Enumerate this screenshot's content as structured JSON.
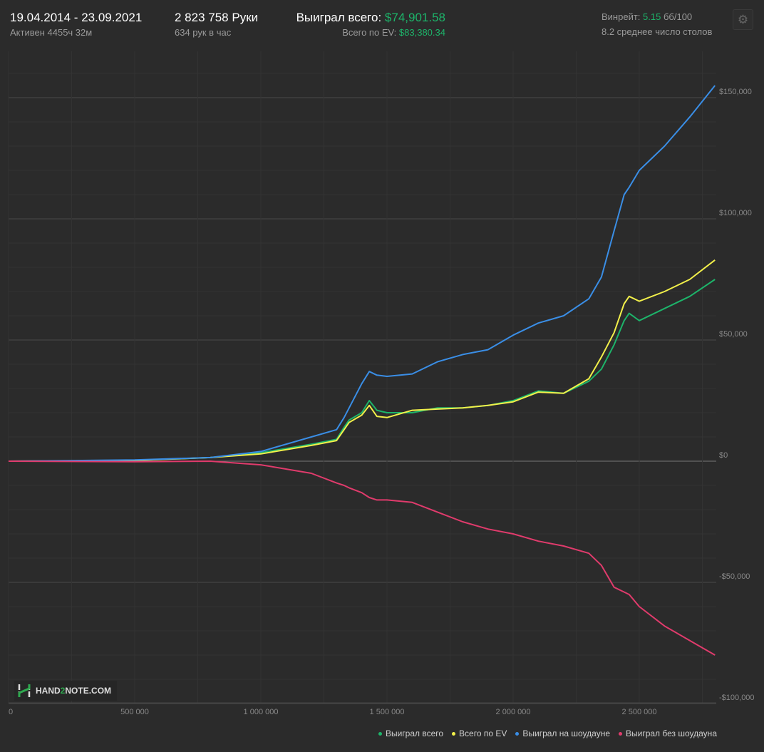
{
  "header": {
    "date_range": "19.04.2014 - 23.09.2021",
    "active": "Активен 4455ч 32м",
    "hands": "2 823 758 Руки",
    "hands_per_hour": "634 рук в час",
    "won_label": "Выиграл всего:",
    "won_value": "$74,901.58",
    "ev_label": "Всего по EV:",
    "ev_value": "$83,380.34",
    "winrate_label": "Винрейт:",
    "winrate_value": "5.15",
    "winrate_unit": "бб/100",
    "tables": "8.2 среднее число столов",
    "settings_icon": "gear-icon"
  },
  "logo": {
    "text_a": "HAND",
    "text_b": "2",
    "text_c": "NOTE.COM"
  },
  "chart_data": {
    "type": "line",
    "xlim": [
      0,
      2823758
    ],
    "ylim": [
      -100000,
      160000
    ],
    "grid": true,
    "legend_placement": "bottom-right",
    "x_ticks": [
      {
        "v": 0,
        "label": "0"
      },
      {
        "v": 500000,
        "label": "500 000"
      },
      {
        "v": 1000000,
        "label": "1 000 000"
      },
      {
        "v": 1500000,
        "label": "1 500 000"
      },
      {
        "v": 2000000,
        "label": "2 000 000"
      },
      {
        "v": 2500000,
        "label": "2 500 000"
      }
    ],
    "y_ticks": [
      {
        "v": 150000,
        "label": "$150,000"
      },
      {
        "v": 100000,
        "label": "$100,000"
      },
      {
        "v": 50000,
        "label": "$50,000"
      },
      {
        "v": 0,
        "label": "$0"
      },
      {
        "v": -50000,
        "label": "-$50,000"
      },
      {
        "v": -100000,
        "label": "-$100,000"
      }
    ],
    "x": [
      0,
      500000,
      800000,
      1000000,
      1200000,
      1300000,
      1330000,
      1350000,
      1400000,
      1430000,
      1460000,
      1500000,
      1600000,
      1700000,
      1800000,
      1900000,
      2000000,
      2100000,
      2200000,
      2300000,
      2350000,
      2400000,
      2440000,
      2460000,
      2500000,
      2600000,
      2700000,
      2800000
    ],
    "series": [
      {
        "name": "Выиграл всего",
        "color": "#1db46a",
        "values": [
          0,
          300,
          1500,
          3500,
          7000,
          9000,
          14000,
          17000,
          20000,
          25000,
          21000,
          20000,
          20000,
          22000,
          22000,
          23000,
          25000,
          29000,
          28000,
          33000,
          38000,
          48000,
          58000,
          61000,
          58000,
          63000,
          68000,
          75000
        ]
      },
      {
        "name": "Всего по EV",
        "color": "#f2f04a",
        "values": [
          0,
          300,
          1500,
          3000,
          6500,
          8500,
          13000,
          16000,
          19000,
          23000,
          18500,
          18000,
          21000,
          21500,
          22000,
          23000,
          24500,
          28500,
          28000,
          34000,
          43000,
          53000,
          65000,
          68000,
          66000,
          70000,
          75000,
          83000
        ]
      },
      {
        "name": "Выиграл на шоудауне",
        "color": "#3a8ee6",
        "values": [
          0,
          500,
          1500,
          4000,
          10000,
          13000,
          18000,
          22000,
          32000,
          37000,
          35500,
          35000,
          36000,
          41000,
          44000,
          46000,
          52000,
          57000,
          60000,
          67000,
          76000,
          95000,
          110000,
          113000,
          120000,
          130000,
          142000,
          155000
        ]
      },
      {
        "name": "Выиграл без шоудауна",
        "color": "#e03b6c",
        "values": [
          0,
          -200,
          0,
          -1500,
          -5000,
          -9000,
          -10000,
          -11000,
          -13000,
          -15000,
          -16000,
          -16000,
          -17000,
          -21000,
          -25000,
          -28000,
          -30000,
          -33000,
          -35000,
          -38000,
          -43000,
          -52000,
          -54000,
          -55000,
          -60000,
          -68000,
          -74000,
          -80000
        ]
      }
    ]
  }
}
